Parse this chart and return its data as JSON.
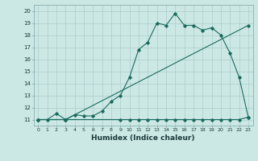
{
  "xlabel": "Humidex (Indice chaleur)",
  "background_color": "#cce8e4",
  "grid_color": "#aacccc",
  "line_color": "#1a6b5e",
  "xlim": [
    -0.5,
    23.5
  ],
  "ylim": [
    10.5,
    20.5
  ],
  "yticks": [
    11,
    12,
    13,
    14,
    15,
    16,
    17,
    18,
    19,
    20
  ],
  "xticks": [
    0,
    1,
    2,
    3,
    4,
    5,
    6,
    7,
    8,
    9,
    10,
    11,
    12,
    13,
    14,
    15,
    16,
    17,
    18,
    19,
    20,
    21,
    22,
    23
  ],
  "line1_x": [
    0,
    1,
    2,
    3,
    4,
    5,
    6,
    7,
    8,
    9,
    10,
    11,
    12,
    13,
    14,
    15,
    16,
    17,
    18,
    19,
    20,
    21,
    22,
    23
  ],
  "line1_y": [
    11,
    11,
    11.5,
    11.0,
    11.4,
    11.3,
    11.3,
    11.7,
    12.5,
    13.0,
    14.5,
    16.8,
    17.4,
    19.0,
    18.8,
    19.8,
    18.8,
    18.8,
    18.4,
    18.6,
    18.0,
    16.5,
    14.5,
    11.2
  ],
  "line2_x": [
    0,
    3,
    23
  ],
  "line2_y": [
    11,
    11.0,
    18.8
  ],
  "line3_x": [
    0,
    3,
    9,
    10,
    11,
    12,
    13,
    14,
    15,
    16,
    17,
    18,
    19,
    20,
    21,
    22,
    23
  ],
  "line3_y": [
    11,
    11.0,
    11.0,
    11.0,
    11.0,
    11.0,
    11.0,
    11.0,
    11.0,
    11.0,
    11.0,
    11.0,
    11.0,
    11.0,
    11.0,
    11.0,
    11.2
  ]
}
